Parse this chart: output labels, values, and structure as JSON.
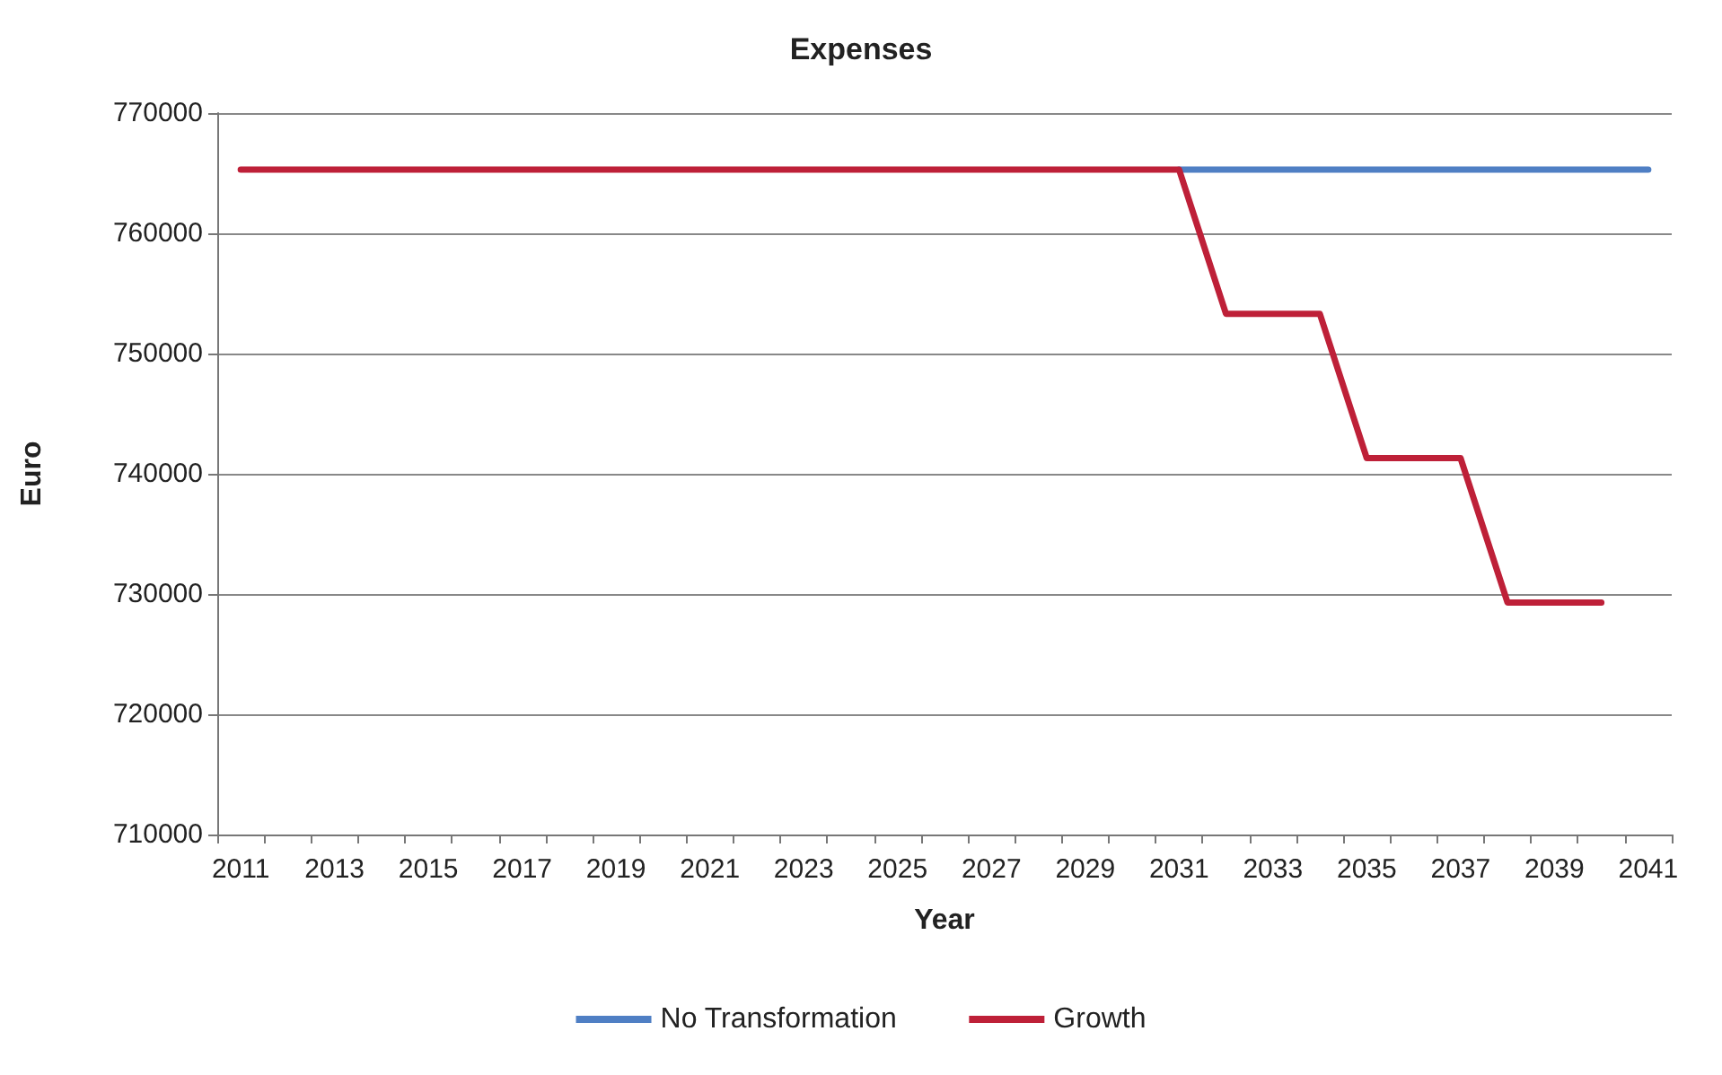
{
  "chart_data": {
    "type": "line",
    "title": "Expenses",
    "xlabel": "Year",
    "ylabel": "Euro",
    "categories": [
      "2011",
      null,
      "2013",
      null,
      "2015",
      null,
      "2017",
      null,
      "2019",
      null,
      "2021",
      null,
      "2023",
      null,
      "2025",
      null,
      "2027",
      null,
      "2029",
      null,
      "2031",
      null,
      "2033",
      null,
      "2035",
      null,
      "2037",
      null,
      "2039",
      null,
      "2041"
    ],
    "series": [
      {
        "name": "No Transformation",
        "color": "#4f7fc4",
        "values": [
          null,
          null,
          null,
          null,
          null,
          null,
          null,
          null,
          null,
          null,
          null,
          null,
          null,
          null,
          null,
          null,
          null,
          null,
          null,
          null,
          765300,
          765300,
          765300,
          765300,
          765300,
          765300,
          765300,
          765300,
          765300,
          765300,
          765300
        ]
      },
      {
        "name": "Growth",
        "color": "#be2038",
        "values": [
          765300,
          765300,
          765300,
          765300,
          765300,
          765300,
          765300,
          765300,
          765300,
          765300,
          765300,
          765300,
          765300,
          765300,
          765300,
          765300,
          765300,
          765300,
          765300,
          765300,
          765300,
          753300,
          753300,
          753300,
          741300,
          741300,
          741300,
          729300,
          729300,
          729300,
          null
        ]
      }
    ],
    "ylim": [
      710000,
      770000
    ],
    "yticks": [
      710000,
      720000,
      730000,
      740000,
      750000,
      760000,
      770000
    ],
    "grid": "y",
    "legend": "bottom",
    "marker": "none",
    "line_style": "solid"
  }
}
